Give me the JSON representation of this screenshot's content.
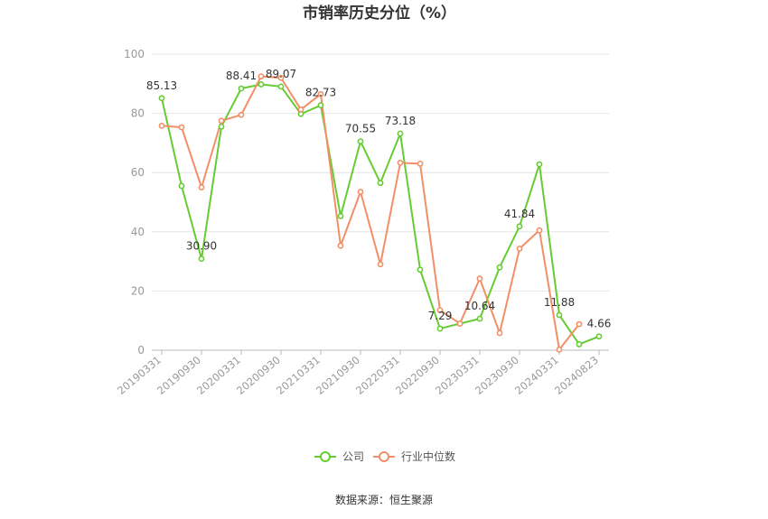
{
  "chart_data": {
    "type": "line",
    "title": "市销率历史分位（%）",
    "ylim": [
      0,
      100
    ],
    "y_ticks": [
      0,
      20,
      40,
      60,
      80,
      100
    ],
    "x_tick_labels": [
      "20190331",
      "20190930",
      "20200331",
      "20200930",
      "20210331",
      "20210930",
      "20220331",
      "20220930",
      "20230331",
      "20230930",
      "20240331",
      "20240823"
    ],
    "grid": "horizontal",
    "legend_position": "bottom-center",
    "series": [
      {
        "name": "公司",
        "color": "#66cc33",
        "values": [
          85.13,
          55.5,
          30.9,
          75.5,
          88.41,
          89.8,
          89.07,
          79.8,
          82.73,
          45.3,
          70.55,
          56.5,
          73.18,
          27.2,
          7.29,
          9.0,
          10.64,
          28.0,
          41.84,
          62.8,
          11.88,
          2.0,
          4.66
        ],
        "labels": {
          "0": "85.13",
          "2": "30.90",
          "4": "88.41",
          "6": "89.07",
          "8": "82.73",
          "10": "70.55",
          "12": "73.18",
          "14": "7.29",
          "16": "10.64",
          "18": "41.84",
          "20": "11.88",
          "22": "4.66"
        }
      },
      {
        "name": "行业中位数",
        "color": "#f28f66",
        "values": [
          75.8,
          75.3,
          55.0,
          77.5,
          79.5,
          92.5,
          92.0,
          81.3,
          86.5,
          35.3,
          53.5,
          29.0,
          63.3,
          63.0,
          13.5,
          9.0,
          24.2,
          5.8,
          34.3,
          40.5,
          0.2,
          8.8
        ]
      }
    ]
  },
  "legend": [
    {
      "label": "公司",
      "color": "#66cc33"
    },
    {
      "label": "行业中位数",
      "color": "#f28f66"
    }
  ],
  "source": "数据来源：恒生聚源"
}
